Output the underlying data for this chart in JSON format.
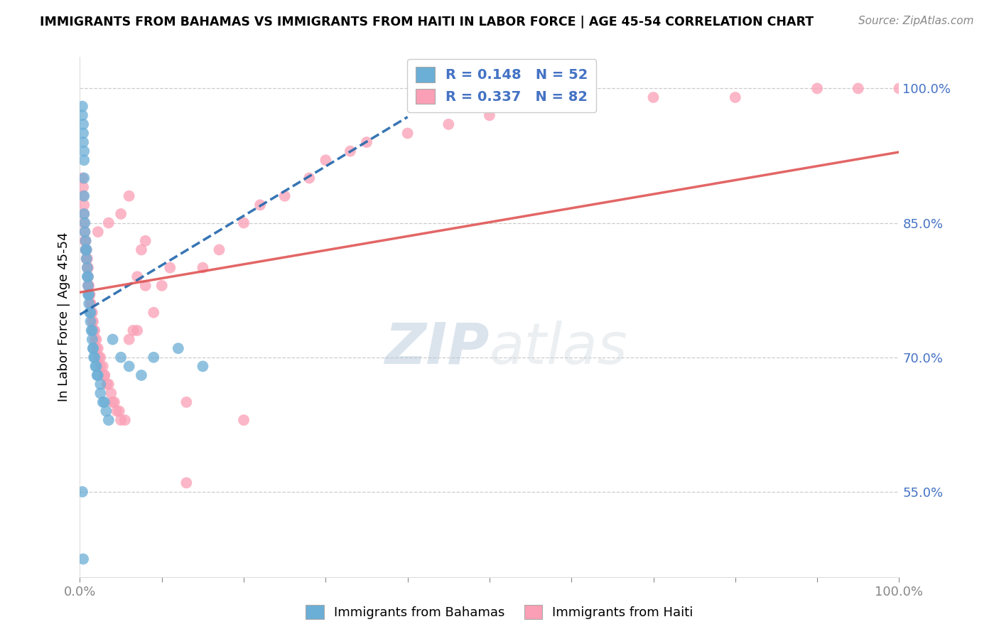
{
  "title": "IMMIGRANTS FROM BAHAMAS VS IMMIGRANTS FROM HAITI IN LABOR FORCE | AGE 45-54 CORRELATION CHART",
  "source": "Source: ZipAtlas.com",
  "ylabel": "In Labor Force | Age 45-54",
  "ytick_values": [
    0.55,
    0.7,
    0.85,
    1.0
  ],
  "xlim": [
    0.0,
    1.0
  ],
  "ylim": [
    0.455,
    1.035
  ],
  "bahamas_color": "#6baed6",
  "haiti_color": "#fa9fb5",
  "bahamas_R": 0.148,
  "bahamas_N": 52,
  "haiti_R": 0.337,
  "haiti_N": 82,
  "legend_label_bahamas": "Immigrants from Bahamas",
  "legend_label_haiti": "Immigrants from Haiti",
  "watermark_zip": "ZIP",
  "watermark_atlas": "atlas",
  "bahamas_x": [
    0.003,
    0.003,
    0.004,
    0.004,
    0.004,
    0.005,
    0.005,
    0.005,
    0.005,
    0.005,
    0.006,
    0.006,
    0.007,
    0.007,
    0.008,
    0.008,
    0.009,
    0.009,
    0.01,
    0.01,
    0.01,
    0.011,
    0.011,
    0.012,
    0.013,
    0.013,
    0.014,
    0.015,
    0.015,
    0.016,
    0.016,
    0.017,
    0.018,
    0.019,
    0.02,
    0.021,
    0.022,
    0.025,
    0.025,
    0.028,
    0.03,
    0.032,
    0.035,
    0.04,
    0.05,
    0.06,
    0.075,
    0.09,
    0.12,
    0.15,
    0.003,
    0.004
  ],
  "bahamas_y": [
    0.98,
    0.97,
    0.96,
    0.95,
    0.94,
    0.93,
    0.92,
    0.9,
    0.88,
    0.86,
    0.85,
    0.84,
    0.83,
    0.82,
    0.82,
    0.81,
    0.8,
    0.79,
    0.79,
    0.78,
    0.77,
    0.77,
    0.76,
    0.75,
    0.75,
    0.74,
    0.73,
    0.73,
    0.72,
    0.71,
    0.71,
    0.7,
    0.7,
    0.69,
    0.69,
    0.68,
    0.68,
    0.67,
    0.66,
    0.65,
    0.65,
    0.64,
    0.63,
    0.72,
    0.7,
    0.69,
    0.68,
    0.7,
    0.71,
    0.69,
    0.55,
    0.475
  ],
  "haiti_x": [
    0.003,
    0.004,
    0.004,
    0.005,
    0.005,
    0.005,
    0.006,
    0.006,
    0.007,
    0.007,
    0.008,
    0.008,
    0.009,
    0.009,
    0.01,
    0.01,
    0.01,
    0.011,
    0.012,
    0.012,
    0.013,
    0.013,
    0.014,
    0.015,
    0.015,
    0.016,
    0.017,
    0.018,
    0.018,
    0.02,
    0.02,
    0.022,
    0.023,
    0.025,
    0.025,
    0.028,
    0.03,
    0.03,
    0.033,
    0.035,
    0.038,
    0.04,
    0.042,
    0.045,
    0.048,
    0.05,
    0.055,
    0.06,
    0.065,
    0.07,
    0.075,
    0.08,
    0.09,
    0.1,
    0.11,
    0.13,
    0.15,
    0.17,
    0.2,
    0.22,
    0.25,
    0.28,
    0.3,
    0.33,
    0.35,
    0.4,
    0.45,
    0.5,
    0.6,
    0.7,
    0.8,
    0.9,
    0.95,
    1.0,
    0.13,
    0.2,
    0.05,
    0.06,
    0.07,
    0.08,
    0.022,
    0.035
  ],
  "haiti_y": [
    0.9,
    0.89,
    0.88,
    0.87,
    0.86,
    0.85,
    0.84,
    0.83,
    0.83,
    0.82,
    0.82,
    0.81,
    0.81,
    0.8,
    0.8,
    0.79,
    0.78,
    0.78,
    0.77,
    0.77,
    0.76,
    0.76,
    0.75,
    0.75,
    0.74,
    0.74,
    0.73,
    0.73,
    0.72,
    0.72,
    0.71,
    0.71,
    0.7,
    0.7,
    0.69,
    0.69,
    0.68,
    0.68,
    0.67,
    0.67,
    0.66,
    0.65,
    0.65,
    0.64,
    0.64,
    0.63,
    0.63,
    0.72,
    0.73,
    0.73,
    0.82,
    0.83,
    0.75,
    0.78,
    0.8,
    0.65,
    0.8,
    0.82,
    0.85,
    0.87,
    0.88,
    0.9,
    0.92,
    0.93,
    0.94,
    0.95,
    0.96,
    0.97,
    0.98,
    0.99,
    0.99,
    1.0,
    1.0,
    1.0,
    0.56,
    0.63,
    0.86,
    0.88,
    0.79,
    0.78,
    0.84,
    0.85
  ]
}
